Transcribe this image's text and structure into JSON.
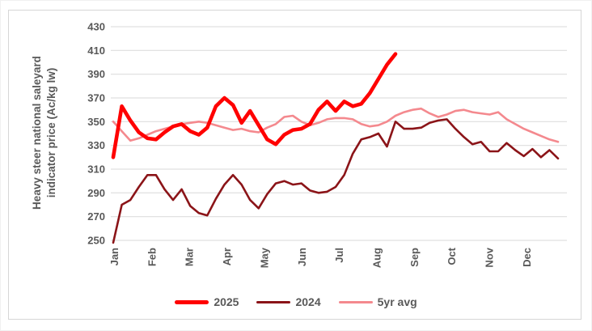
{
  "chart_data": {
    "type": "line",
    "title": "",
    "ylabel_line1": "Heavy steer national saleyard",
    "ylabel_line2": "indicator price (Ac/kg lw)",
    "ylim": [
      250,
      430
    ],
    "y_ticks": [
      430,
      410,
      390,
      370,
      350,
      330,
      310,
      290,
      270,
      250
    ],
    "x_months": [
      "Jan",
      "Feb",
      "Mar",
      "Apr",
      "May",
      "Jun",
      "Jul",
      "Aug",
      "Sep",
      "Oct",
      "Nov",
      "Dec"
    ],
    "x_unit": "weekly",
    "grid": true,
    "gridline_color": "#d9d9d9",
    "text_color": "#595959",
    "legend_position": "bottom",
    "series": [
      {
        "name": "2025",
        "color": "#ff0000",
        "width": 4.6,
        "values": [
          320,
          363,
          351,
          341,
          336,
          335,
          341,
          346,
          348,
          342,
          339,
          345,
          363,
          370,
          364,
          349,
          359,
          347,
          335,
          331,
          339,
          343,
          344,
          348,
          360,
          367,
          359,
          367,
          363,
          365,
          374,
          386,
          398,
          407
        ]
      },
      {
        "name": "2024",
        "color": "#8b1418",
        "width": 2.6,
        "values": [
          248,
          280,
          284,
          295,
          305,
          305,
          293,
          284,
          293,
          279,
          273,
          271,
          285,
          297,
          305,
          297,
          284,
          277,
          289,
          298,
          300,
          297,
          298,
          292,
          290,
          291,
          295,
          305,
          323,
          335,
          337,
          340,
          329,
          350,
          344,
          344,
          345,
          349,
          351,
          352,
          344,
          337,
          331,
          333,
          325,
          325,
          332,
          326,
          321,
          327,
          320,
          326,
          319
        ]
      },
      {
        "name": "5yr avg",
        "color": "#f4898e",
        "width": 2.6,
        "values": [
          350,
          342,
          334,
          336,
          339,
          342,
          344,
          346,
          348,
          349,
          350,
          349,
          347,
          345,
          343,
          344,
          342,
          341,
          345,
          348,
          354,
          355,
          350,
          347,
          349,
          352,
          353,
          353,
          352,
          348,
          346,
          347,
          350,
          355,
          358,
          360,
          361,
          357,
          354,
          356,
          359,
          360,
          358,
          357,
          356,
          358,
          352,
          348,
          344,
          341,
          338,
          335,
          333
        ]
      }
    ]
  }
}
